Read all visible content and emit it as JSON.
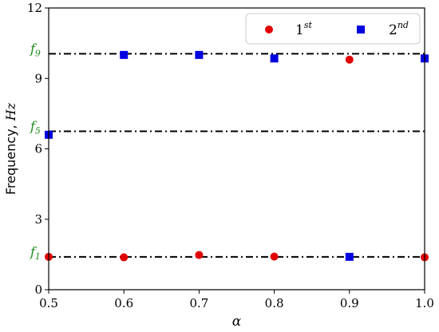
{
  "chart_data": {
    "type": "scatter",
    "xlabel": "α",
    "ylabel": "Frequency, Hz",
    "ylabel_prefix": "Frequency, ",
    "ylabel_unit": "Hz",
    "xlim": [
      0.5,
      1.0
    ],
    "ylim": [
      0,
      12
    ],
    "xticks": [
      0.5,
      0.6,
      0.7,
      0.8,
      0.9,
      1.0
    ],
    "xtick_labels": [
      "0.5",
      "0.6",
      "0.7",
      "0.8",
      "0.9",
      "1.0"
    ],
    "yticks": [
      0,
      3,
      6,
      9,
      12
    ],
    "ytick_labels": [
      "0",
      "3",
      "6",
      "9",
      "12"
    ],
    "grid": false,
    "legend_position": "top-right",
    "reference_lines": [
      {
        "label": "f1",
        "label_base": "f",
        "label_sub": "1",
        "y": 1.4
      },
      {
        "label": "f5",
        "label_base": "f",
        "label_sub": "5",
        "y": 6.75
      },
      {
        "label": "f9",
        "label_base": "f",
        "label_sub": "9",
        "y": 10.05
      }
    ],
    "series": [
      {
        "name": "1st",
        "name_base": "1",
        "name_sup": "st",
        "marker": "circle",
        "color": "#e00000",
        "x": [
          0.5,
          0.6,
          0.7,
          0.8,
          0.9,
          1.0
        ],
        "y": [
          1.4,
          1.38,
          1.48,
          1.41,
          9.8,
          1.38
        ]
      },
      {
        "name": "2nd",
        "name_base": "2",
        "name_sup": "nd",
        "marker": "square",
        "color": "#0000e0",
        "x": [
          0.5,
          0.6,
          0.7,
          0.8,
          0.9,
          1.0
        ],
        "y": [
          6.6,
          10.0,
          10.0,
          9.85,
          1.4,
          9.85
        ]
      }
    ]
  }
}
